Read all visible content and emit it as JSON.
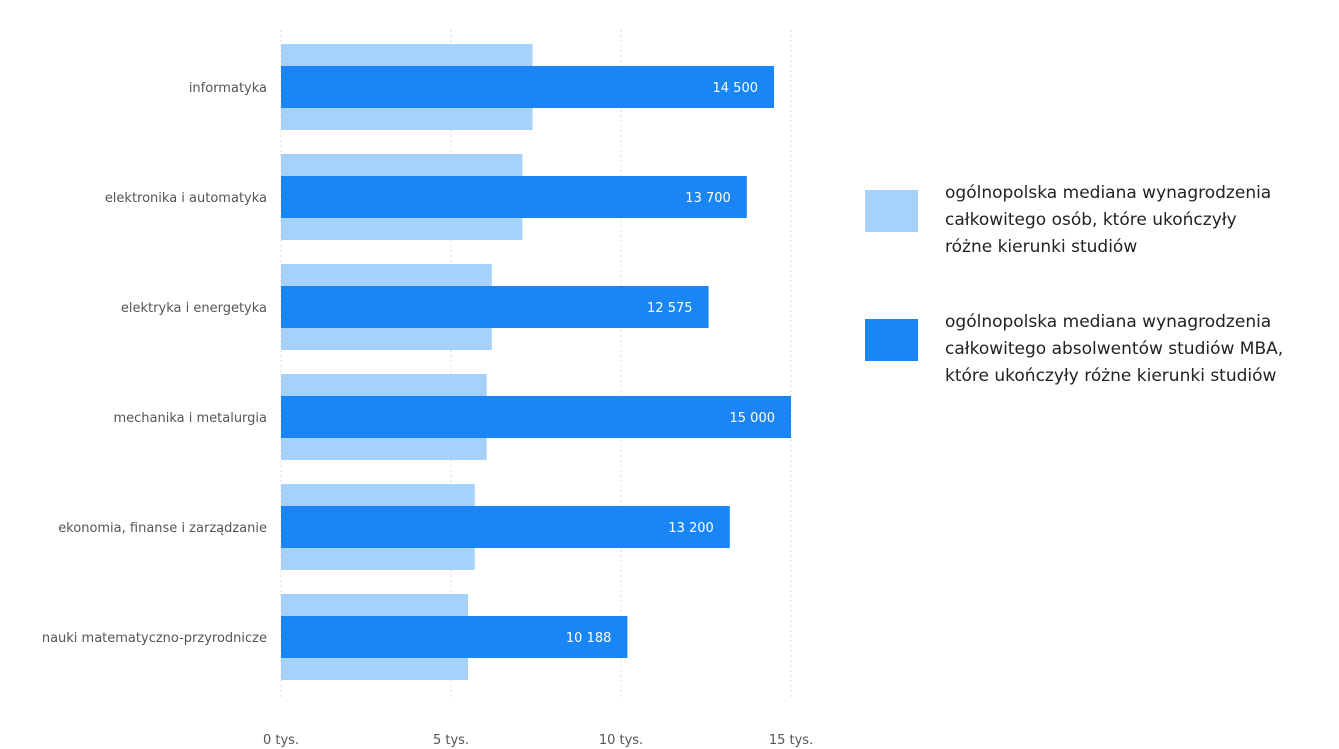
{
  "colors": {
    "light": "#a6d1fb",
    "dark": "#1a85f5",
    "grid": "#d8d8d8"
  },
  "chart_data": {
    "type": "bar",
    "orientation": "horizontal",
    "categories": [
      "informatyka",
      "elektronika i automatyka",
      "elektryka i energetyka",
      "mechanika i metalurgia",
      "ekonomia, finanse i zarządzanie",
      "nauki matematyczno-przyrodnicze"
    ],
    "series": [
      {
        "name": "ogólnopolska mediana wynagrodzenia całkowitego osób, które ukończyły różne kierunki studiów",
        "values": [
          7400,
          7100,
          6200,
          6050,
          5700,
          5500
        ],
        "color": "#a6d1fb"
      },
      {
        "name": "ogólnopolska mediana wynagrodzenia całkowitego absolwentów studiów MBA, które ukończyły różne kierunki studiów",
        "values": [
          14500,
          13700,
          12575,
          15000,
          13200,
          10188
        ],
        "color": "#1a85f5"
      }
    ],
    "data_labels": [
      "14 500",
      "13 700",
      "12 575",
      "15 000",
      "13 200",
      "10 188"
    ],
    "x_ticks": [
      0,
      5000,
      10000,
      15000
    ],
    "x_tick_labels": [
      "0 tys.",
      "5 tys.",
      "10 tys.",
      "15 tys."
    ],
    "xlim": [
      0,
      15000
    ],
    "grid": "vertical dotted",
    "legend_position": "right",
    "title": "",
    "xlabel": "",
    "ylabel": ""
  },
  "legend": {
    "items": [
      {
        "lines": [
          "ogólnopolska mediana wynagrodzenia",
          "całkowitego osób, które ukończyły",
          "różne kierunki studiów"
        ]
      },
      {
        "lines": [
          "ogólnopolska mediana wynagrodzenia",
          "całkowitego absolwentów studiów MBA,",
          "które ukończyły różne kierunki studiów"
        ]
      }
    ]
  }
}
